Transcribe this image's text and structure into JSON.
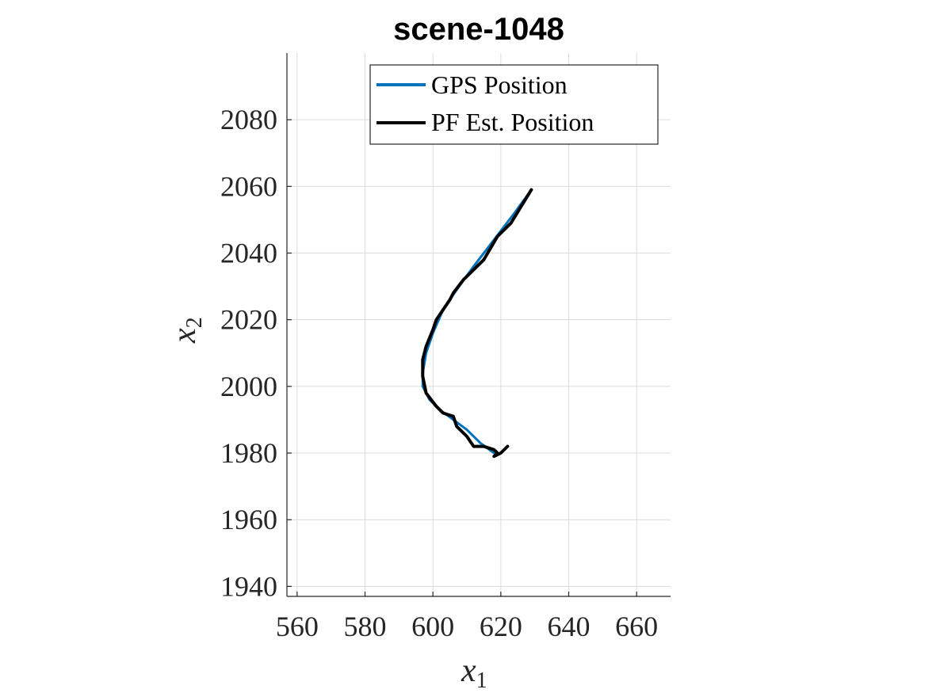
{
  "chart_data": {
    "type": "line",
    "title": "scene-1048",
    "xlabel": "x",
    "xlabel_sub": "1",
    "ylabel": "x",
    "ylabel_sub": "2",
    "xlim": [
      557,
      670
    ],
    "ylim": [
      1937,
      2100
    ],
    "xticks": [
      560,
      580,
      600,
      620,
      640,
      660
    ],
    "yticks": [
      1940,
      1960,
      1980,
      2000,
      2020,
      2040,
      2060,
      2080
    ],
    "grid": true,
    "legend_position": "top-right",
    "series": [
      {
        "name": "GPS Position",
        "color": "#0072BD",
        "x": [
          629,
          624,
          618,
          612,
          607,
          603,
          600,
          598,
          597,
          597,
          599,
          602,
          606,
          610,
          614,
          618
        ],
        "y": [
          2059,
          2052,
          2044,
          2036,
          2029,
          2023,
          2016,
          2010,
          2004,
          2000,
          1996,
          1993,
          1990,
          1987,
          1983,
          1980
        ]
      },
      {
        "name": "PF Est. Position",
        "color": "#000000",
        "x": [
          629,
          626,
          623,
          620,
          619,
          615,
          613,
          609,
          606,
          605,
          603,
          601,
          600,
          598,
          597,
          597,
          598,
          601,
          603,
          606,
          607,
          610,
          612,
          613,
          615,
          618,
          619,
          618,
          620,
          622
        ],
        "y": [
          2059,
          2054,
          2049,
          2046,
          2045,
          2038,
          2036,
          2032,
          2028,
          2026,
          2023,
          2020,
          2017,
          2012,
          2008,
          2003,
          1998,
          1994,
          1992,
          1991,
          1988,
          1985,
          1982,
          1982,
          1982,
          1981,
          1980,
          1979,
          1980,
          1982
        ]
      }
    ]
  }
}
